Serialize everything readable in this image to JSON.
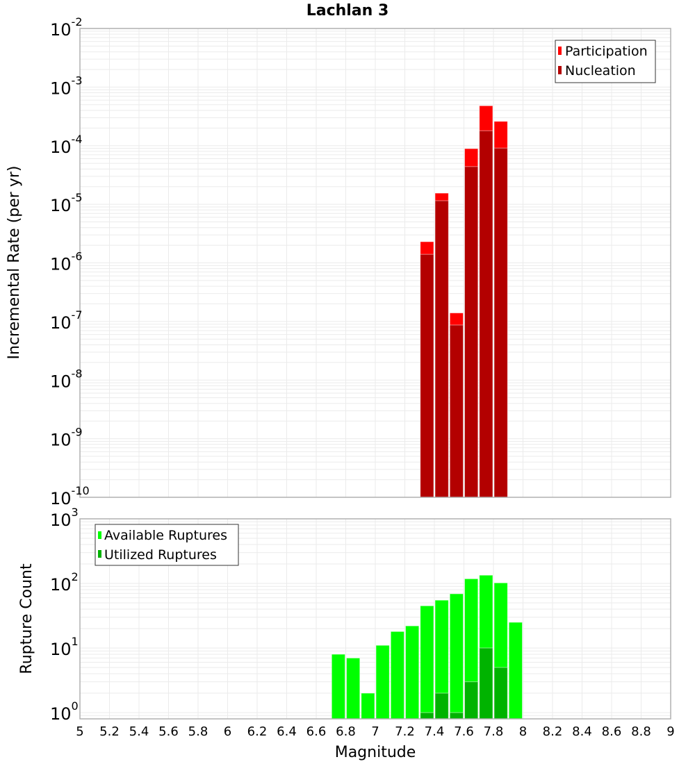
{
  "chart_data": [
    {
      "type": "bar",
      "title": "Lachlan 3",
      "xlabel": "",
      "ylabel": "Incremental Rate (per yr)",
      "yscale": "log",
      "xlim": [
        5,
        9
      ],
      "ylim": [
        1e-10,
        0.01
      ],
      "grid": true,
      "legend_position": "top-right",
      "ytick_labels": [
        {
          "exp": "-2"
        },
        {
          "exp": "-3"
        },
        {
          "exp": "-4"
        },
        {
          "exp": "-5"
        },
        {
          "exp": "-6"
        },
        {
          "exp": "-7"
        },
        {
          "exp": "-8"
        },
        {
          "exp": "-9"
        },
        {
          "exp": "-10"
        }
      ],
      "ytick_base": "10",
      "x": [
        7.35,
        7.45,
        7.55,
        7.65,
        7.75,
        7.85
      ],
      "series": [
        {
          "name": "Participation",
          "color": "#ff0000",
          "values": [
            2.3e-06,
            1.55e-05,
            1.4e-07,
            8.9e-05,
            0.00048,
            0.00026
          ]
        },
        {
          "name": "Nucleation",
          "color": "#b30000",
          "values": [
            1.4e-06,
            1.15e-05,
            8.7e-08,
            4.4e-05,
            0.00018,
            9.1e-05
          ]
        }
      ]
    },
    {
      "type": "bar",
      "title": "",
      "xlabel": "Magnitude",
      "ylabel": "Rupture Count",
      "yscale": "log",
      "xlim": [
        5,
        9
      ],
      "ylim": [
        0.8,
        1000
      ],
      "grid": true,
      "legend_position": "top-left",
      "ytick_labels": [
        {
          "exp": "3"
        },
        {
          "exp": "2"
        },
        {
          "exp": "1"
        },
        {
          "exp": "0"
        }
      ],
      "ytick_base": "10",
      "xtick_labels": [
        "5",
        "5.2",
        "5.4",
        "5.6",
        "5.8",
        "6",
        "6.2",
        "6.4",
        "6.6",
        "6.8",
        "7",
        "7.2",
        "7.4",
        "7.6",
        "7.8",
        "8",
        "8.2",
        "8.4",
        "8.6",
        "8.8",
        "9"
      ],
      "x": [
        6.75,
        6.85,
        6.95,
        7.05,
        7.15,
        7.25,
        7.35,
        7.45,
        7.55,
        7.65,
        7.75,
        7.85,
        7.95
      ],
      "series": [
        {
          "name": "Available Ruptures",
          "color": "#00ff00",
          "values": [
            8,
            7,
            2,
            11,
            18,
            22,
            45,
            55,
            69,
            118,
            134,
            102,
            25
          ]
        },
        {
          "name": "Utilized Ruptures",
          "color": "#00b300",
          "values": [
            0,
            0,
            0,
            0,
            0,
            0,
            1,
            2,
            1,
            3,
            10,
            5,
            0
          ]
        }
      ]
    }
  ]
}
